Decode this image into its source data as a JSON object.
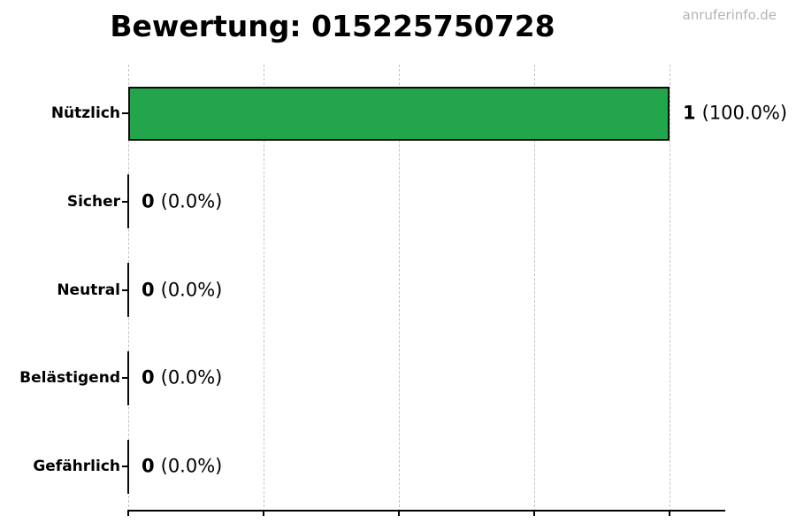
{
  "header": {
    "watermark": "anruferinfo.de"
  },
  "chart_data": {
    "type": "bar",
    "orientation": "horizontal",
    "title": "Bewertung: 015225750728",
    "categories": [
      "Nützlich",
      "Sicher",
      "Neutral",
      "Belästigend",
      "Gefährlich"
    ],
    "values": [
      1,
      0,
      0,
      0,
      0
    ],
    "percentages": [
      100.0,
      0.0,
      0.0,
      0.0,
      0.0
    ],
    "value_labels": [
      {
        "count": "1",
        "pct": "(100.0%)"
      },
      {
        "count": "0",
        "pct": "(0.0%)"
      },
      {
        "count": "0",
        "pct": "(0.0%)"
      },
      {
        "count": "0",
        "pct": "(0.0%)"
      },
      {
        "count": "0",
        "pct": "(0.0%)"
      }
    ],
    "xlim": [
      0,
      1.1
    ],
    "gridline_values": [
      0,
      0.25,
      0.5,
      0.75,
      1.0
    ],
    "grid": "vertical-dashed",
    "bar_color": "#23a54b",
    "bar_edge_color": "#000000",
    "legend": "none",
    "xlabel": "",
    "ylabel": ""
  }
}
